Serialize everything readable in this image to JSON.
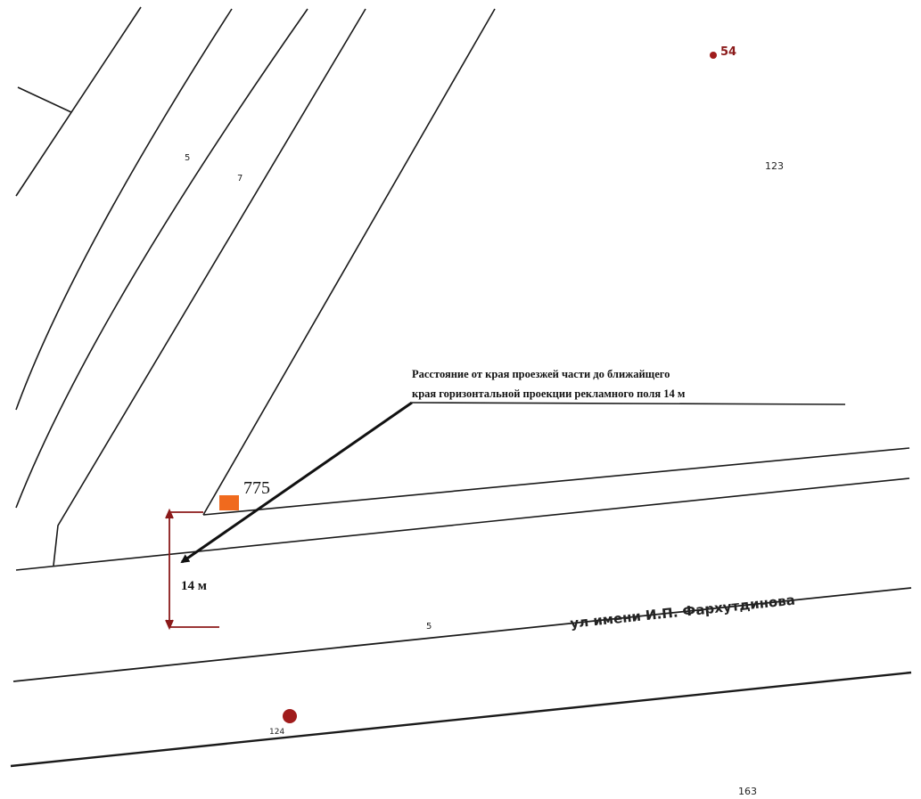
{
  "map": {
    "annotation_line1": "Расстояние от края проезжей части до ближайщего",
    "annotation_line2": "края горизонтальной проекции рекламного поля 14 м",
    "object_number": "775",
    "dimension_label": "14 м",
    "street_name": "ул имени И.П. Фархутдинова",
    "house_labels": {
      "left_5": "5",
      "left_7": "7",
      "h54": "54",
      "h123": "123",
      "road_5": "5",
      "h124": "124",
      "h163": "163"
    },
    "colors": {
      "marker": "#f06a1e",
      "dimension": "#8b1a1a",
      "point": "#a01c1c",
      "line": "#1a1a1a"
    }
  }
}
